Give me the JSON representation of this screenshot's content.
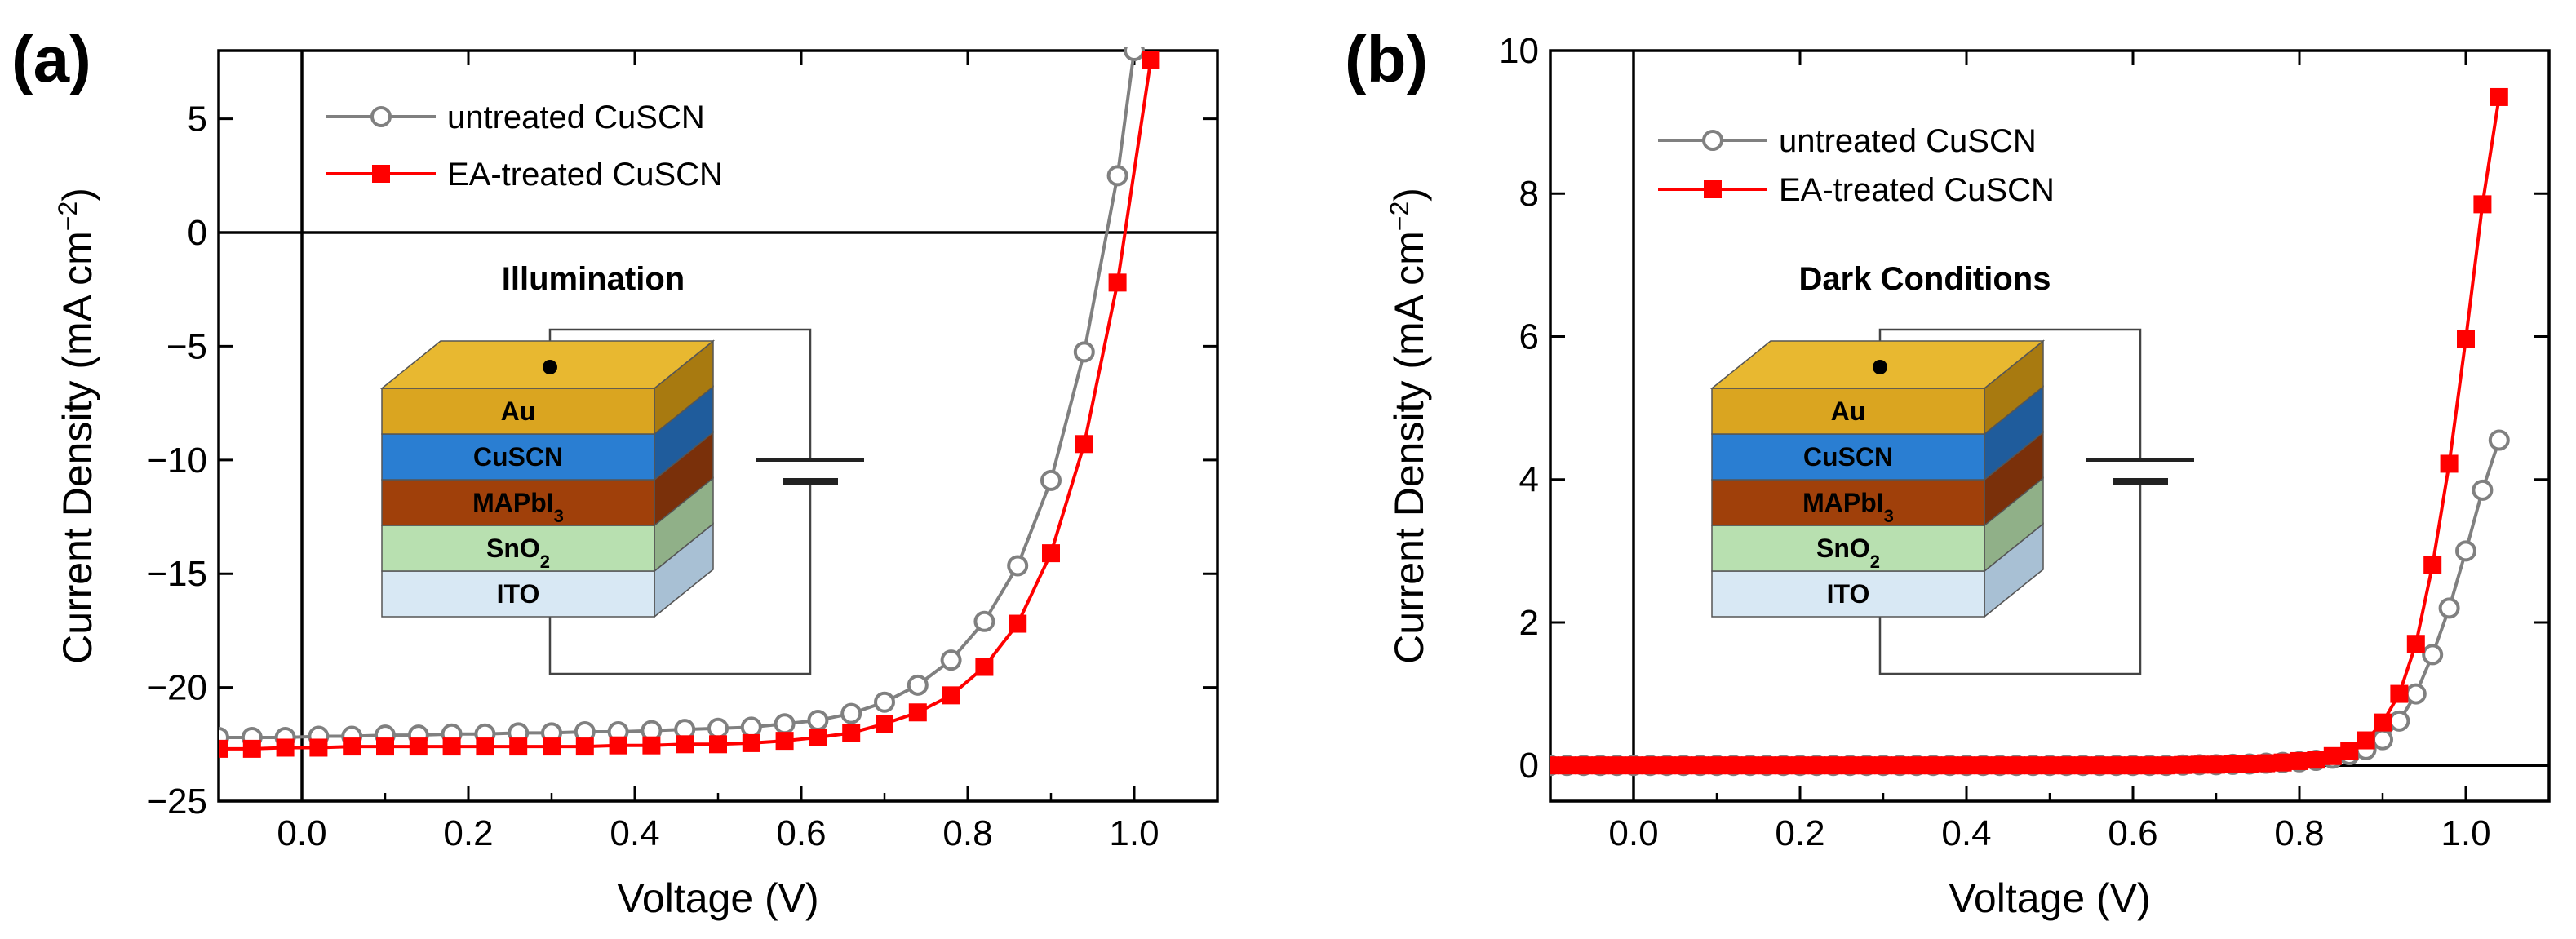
{
  "chart_data": [
    {
      "panel_label": "(a)",
      "type": "line",
      "title": "",
      "xlabel": "Voltage (V)",
      "ylabel_main": "Current Density (mA cm",
      "ylabel_sup": "−2",
      "ylabel_close": ")",
      "xlim": [
        -0.1,
        1.1
      ],
      "ylim": [
        -25,
        8
      ],
      "xticks": [
        0.0,
        0.2,
        0.4,
        0.6,
        0.8,
        1.0
      ],
      "xtick_labels": [
        "0.0",
        "0.2",
        "0.4",
        "0.6",
        "0.8",
        "1.0"
      ],
      "yticks": [
        5,
        0,
        -5,
        -10,
        -15,
        -20,
        -25
      ],
      "ytick_labels": [
        "5",
        "0",
        "−5",
        "−10",
        "−15",
        "−20",
        "−25"
      ],
      "condition": "Illumination",
      "legend_position": "top-left",
      "series": [
        {
          "name": "untreated CuSCN",
          "color": "#808080",
          "marker": "open-circle",
          "x": [
            -0.1,
            -0.06,
            -0.02,
            0.02,
            0.06,
            0.1,
            0.14,
            0.18,
            0.22,
            0.26,
            0.3,
            0.34,
            0.38,
            0.42,
            0.46,
            0.5,
            0.54,
            0.58,
            0.62,
            0.66,
            0.7,
            0.74,
            0.78,
            0.82,
            0.86,
            0.9,
            0.94,
            0.98,
            1.0
          ],
          "y": [
            -22.2,
            -22.2,
            -22.2,
            -22.15,
            -22.15,
            -22.1,
            -22.1,
            -22.05,
            -22.05,
            -22.0,
            -22.0,
            -21.95,
            -21.95,
            -21.9,
            -21.85,
            -21.8,
            -21.75,
            -21.6,
            -21.45,
            -21.15,
            -20.65,
            -19.9,
            -18.8,
            -17.1,
            -14.65,
            -10.9,
            -5.25,
            2.5,
            8.0
          ]
        },
        {
          "name": "EA-treated CuSCN",
          "color": "#ff0000",
          "marker": "filled-square",
          "x": [
            -0.1,
            -0.06,
            -0.02,
            0.02,
            0.06,
            0.1,
            0.14,
            0.18,
            0.22,
            0.26,
            0.3,
            0.34,
            0.38,
            0.42,
            0.46,
            0.5,
            0.54,
            0.58,
            0.62,
            0.66,
            0.7,
            0.74,
            0.78,
            0.82,
            0.86,
            0.9,
            0.94,
            0.98,
            1.02
          ],
          "y": [
            -22.7,
            -22.7,
            -22.65,
            -22.65,
            -22.6,
            -22.6,
            -22.6,
            -22.6,
            -22.6,
            -22.6,
            -22.6,
            -22.6,
            -22.55,
            -22.55,
            -22.5,
            -22.5,
            -22.45,
            -22.35,
            -22.2,
            -22.0,
            -21.6,
            -21.1,
            -20.35,
            -19.1,
            -17.2,
            -14.1,
            -9.3,
            -2.2,
            7.6
          ]
        }
      ]
    },
    {
      "panel_label": "(b)",
      "type": "line",
      "title": "",
      "xlabel": "Voltage (V)",
      "ylabel_main": "Current Density (mA cm",
      "ylabel_sup": "−2",
      "ylabel_close": ")",
      "xlim": [
        -0.1,
        1.1
      ],
      "ylim": [
        -0.5,
        10
      ],
      "xticks": [
        0.0,
        0.2,
        0.4,
        0.6,
        0.8,
        1.0
      ],
      "xtick_labels": [
        "0.0",
        "0.2",
        "0.4",
        "0.6",
        "0.8",
        "1.0"
      ],
      "yticks": [
        0,
        2,
        4,
        6,
        8,
        10
      ],
      "ytick_labels": [
        "0",
        "2",
        "4",
        "6",
        "8",
        "10"
      ],
      "condition": "Dark Conditions",
      "legend_position": "top-left",
      "series": [
        {
          "name": "untreated CuSCN",
          "color": "#808080",
          "marker": "open-circle",
          "x": [
            -0.1,
            -0.08,
            -0.06,
            -0.04,
            -0.02,
            0.0,
            0.02,
            0.04,
            0.06,
            0.08,
            0.1,
            0.12,
            0.14,
            0.16,
            0.18,
            0.2,
            0.22,
            0.24,
            0.26,
            0.28,
            0.3,
            0.32,
            0.34,
            0.36,
            0.38,
            0.4,
            0.42,
            0.44,
            0.46,
            0.48,
            0.5,
            0.52,
            0.54,
            0.56,
            0.58,
            0.6,
            0.62,
            0.64,
            0.66,
            0.68,
            0.7,
            0.72,
            0.74,
            0.76,
            0.78,
            0.8,
            0.82,
            0.84,
            0.86,
            0.88,
            0.9,
            0.92,
            0.94,
            0.96,
            0.98,
            1.0,
            1.02,
            1.04
          ],
          "y": [
            0,
            0,
            0,
            0,
            0,
            0,
            0,
            0,
            0,
            0,
            0,
            0,
            0,
            0,
            0,
            0,
            0,
            0,
            0,
            0,
            0,
            0,
            0,
            0,
            0,
            0,
            0,
            0,
            0,
            0,
            0,
            0,
            0,
            0,
            0,
            0,
            0,
            0,
            0.005,
            0.01,
            0.01,
            0.015,
            0.02,
            0.03,
            0.04,
            0.05,
            0.07,
            0.1,
            0.15,
            0.22,
            0.36,
            0.62,
            1.0,
            1.55,
            2.2,
            3.0,
            3.85,
            4.55
          ]
        },
        {
          "name": "EA-treated CuSCN",
          "color": "#ff0000",
          "marker": "filled-square",
          "x": [
            -0.1,
            -0.08,
            -0.06,
            -0.04,
            -0.02,
            0.0,
            0.02,
            0.04,
            0.06,
            0.08,
            0.1,
            0.12,
            0.14,
            0.16,
            0.18,
            0.2,
            0.22,
            0.24,
            0.26,
            0.28,
            0.3,
            0.32,
            0.34,
            0.36,
            0.38,
            0.4,
            0.42,
            0.44,
            0.46,
            0.48,
            0.5,
            0.52,
            0.54,
            0.56,
            0.58,
            0.6,
            0.62,
            0.64,
            0.66,
            0.68,
            0.7,
            0.72,
            0.74,
            0.76,
            0.78,
            0.8,
            0.82,
            0.84,
            0.86,
            0.88,
            0.9,
            0.92,
            0.94,
            0.96,
            0.98,
            1.0,
            1.02,
            1.04
          ],
          "y": [
            0,
            0,
            0,
            0,
            0,
            0,
            0,
            0,
            0,
            0,
            0,
            0,
            0,
            0,
            0,
            0,
            0,
            0,
            0,
            0,
            0,
            0,
            0,
            0,
            0,
            0,
            0,
            0,
            0,
            0,
            0,
            0,
            0,
            0,
            0,
            0,
            0,
            0,
            0.005,
            0.01,
            0.01,
            0.015,
            0.02,
            0.03,
            0.04,
            0.06,
            0.08,
            0.13,
            0.2,
            0.35,
            0.6,
            1.0,
            1.7,
            2.8,
            4.22,
            5.97,
            7.85,
            9.35
          ]
        }
      ]
    }
  ],
  "device_stack": {
    "top_layer": "Au",
    "layers": [
      {
        "label": "Au",
        "front": "#DAA520",
        "top": "#E8B830",
        "side": "#A87A10"
      },
      {
        "label": "CuSCN",
        "front": "#2A7ED2",
        "top": "#4A94DC",
        "side": "#1F5C9C"
      },
      {
        "label": "MAPbI",
        "sub": "3",
        "front": "#A0400A",
        "top": "#B2551A",
        "side": "#7A300A"
      },
      {
        "label": "SnO",
        "sub": "2",
        "front": "#B8E0B0",
        "top": "#CCEAC4",
        "side": "#90B088"
      },
      {
        "label": "ITO",
        "front": "#D8E8F4",
        "top": "#E6F0F8",
        "side": "#A8C0D4"
      }
    ]
  }
}
